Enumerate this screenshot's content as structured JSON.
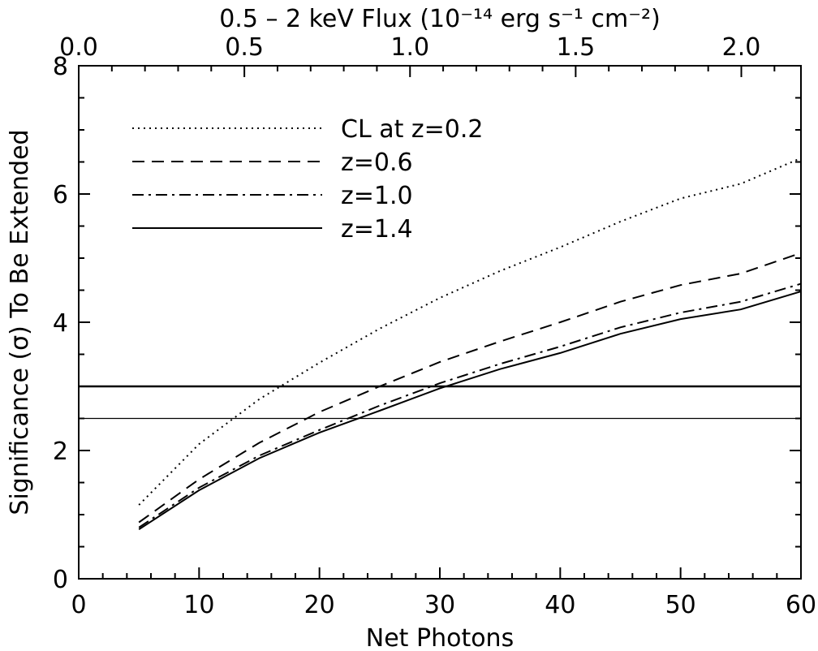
{
  "chart_data": {
    "type": "line",
    "xlabel": "Net Photons",
    "ylabel": "Significance (σ) To Be Extended",
    "top_axis_label": "0.5 – 2 keV Flux (10⁻¹⁴ erg s⁻¹ cm⁻²)",
    "xlim": [
      0,
      60
    ],
    "ylim": [
      0,
      8
    ],
    "top_xlim": [
      0.0,
      2.18
    ],
    "x_ticks": [
      0,
      10,
      20,
      30,
      40,
      50,
      60
    ],
    "x_tick_labels": [
      "0",
      "10",
      "20",
      "30",
      "40",
      "50",
      "60"
    ],
    "y_ticks": [
      0,
      2,
      4,
      6,
      8
    ],
    "y_tick_labels": [
      "0",
      "2",
      "4",
      "6",
      "8"
    ],
    "top_ticks": [
      0.0,
      0.5,
      1.0,
      1.5,
      2.0
    ],
    "top_tick_labels": [
      "0.0",
      "0.5",
      "1.0",
      "1.5",
      "2.0"
    ],
    "grid": false,
    "legend_position": "top-left",
    "x": [
      5,
      10,
      15,
      20,
      25,
      30,
      35,
      40,
      45,
      50,
      55,
      60
    ],
    "series": [
      {
        "name": "CL at z=0.2",
        "style": "dotted",
        "values": [
          1.15,
          2.1,
          2.8,
          3.37,
          3.9,
          4.38,
          4.8,
          5.17,
          5.57,
          5.93,
          6.16,
          6.56
        ]
      },
      {
        "name": "z=0.6",
        "style": "dashed",
        "values": [
          0.88,
          1.55,
          2.12,
          2.6,
          3.0,
          3.38,
          3.7,
          4.0,
          4.32,
          4.58,
          4.76,
          5.08
        ]
      },
      {
        "name": "z=1.0",
        "style": "dash-dot",
        "values": [
          0.8,
          1.42,
          1.92,
          2.32,
          2.7,
          3.05,
          3.35,
          3.62,
          3.92,
          4.15,
          4.32,
          4.6
        ]
      },
      {
        "name": "z=1.4",
        "style": "solid",
        "values": [
          0.77,
          1.38,
          1.88,
          2.28,
          2.62,
          2.97,
          3.27,
          3.52,
          3.82,
          4.05,
          4.2,
          4.48
        ]
      }
    ],
    "reference_lines": [
      {
        "y": 3.0,
        "weight": "heavy"
      },
      {
        "y": 2.5,
        "weight": "light"
      }
    ]
  }
}
